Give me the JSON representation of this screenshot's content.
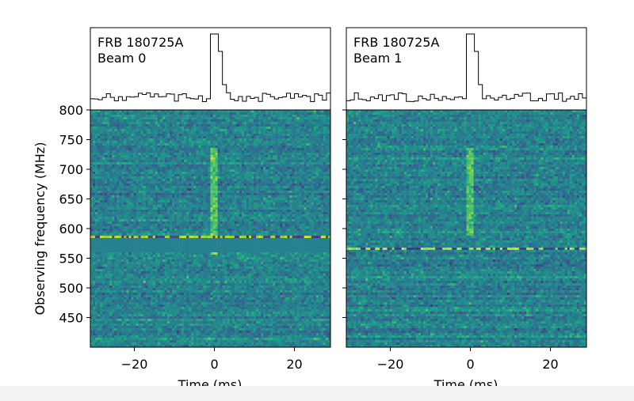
{
  "chart_data": [
    {
      "type": "heatmap",
      "panel": "left",
      "label_line1": "FRB 180725A",
      "label_line2": "Beam 0",
      "xlabel": "Time (ms)",
      "ylabel": "Observing frequency (MHz)",
      "xlim": [
        -31,
        29
      ],
      "ylim": [
        400,
        800
      ],
      "xticks": [
        -20,
        0,
        20
      ],
      "yticks": [
        450,
        500,
        550,
        600,
        650,
        700,
        750,
        800
      ],
      "burst_time_ms": 0,
      "burst_freq_range_mhz": [
        555,
        735
      ],
      "bright_rfi_channels_mhz": [
        585
      ],
      "masked_band_mhz": [
        560,
        582
      ],
      "colormap": "viridis"
    },
    {
      "type": "heatmap",
      "panel": "right",
      "label_line1": "FRB 180725A",
      "label_line2": "Beam 1",
      "xlabel": "Time (ms)",
      "ylabel": "",
      "xlim": [
        -31,
        29
      ],
      "ylim": [
        400,
        800
      ],
      "xticks": [
        -20,
        0,
        20
      ],
      "yticks": [
        450,
        500,
        550,
        600,
        650,
        700,
        750,
        800
      ],
      "burst_time_ms": 0,
      "burst_freq_range_mhz": [
        590,
        735
      ],
      "bright_rfi_channels_mhz": [
        567
      ],
      "masked_band_mhz": [],
      "colormap": "viridis"
    }
  ]
}
